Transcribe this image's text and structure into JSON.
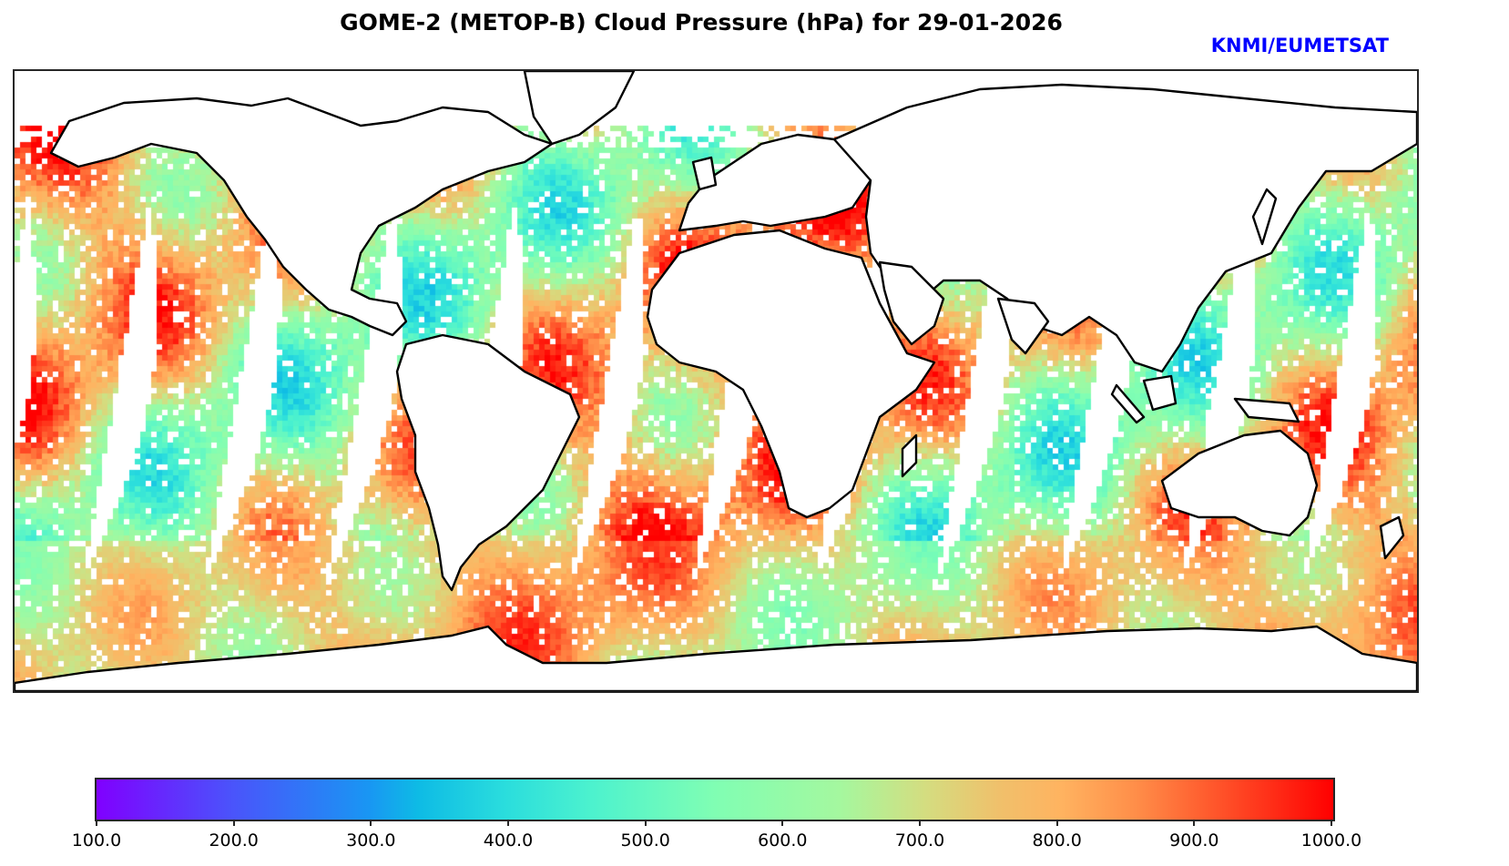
{
  "title": "GOME-2 (METOP-B) Cloud Pressure (hPa) for 29-01-2026",
  "credit": "KNMI/EUMETSAT",
  "colors": {
    "credit": "#0000ff",
    "colormap": "rainbow",
    "colormap_low": "#8000ff",
    "colormap_high": "#ff0000"
  },
  "chart_data": {
    "type": "heatmap",
    "title": "GOME-2 (METOP-B) Cloud Pressure (hPa) for 29-01-2026",
    "variable": "Cloud Pressure",
    "units": "hPa",
    "date": "29-01-2026",
    "projection": "plate-carree",
    "colorbar": {
      "orientation": "horizontal",
      "range": [
        100.0,
        1000.0
      ],
      "ticks": [
        100.0,
        200.0,
        300.0,
        400.0,
        500.0,
        600.0,
        700.0,
        800.0,
        900.0,
        1000.0
      ],
      "tick_labels": [
        "100.0",
        "200.0",
        "300.0",
        "400.0",
        "500.0",
        "600.0",
        "700.0",
        "800.0",
        "900.0",
        "1000.0"
      ]
    },
    "swaths": 14
  }
}
